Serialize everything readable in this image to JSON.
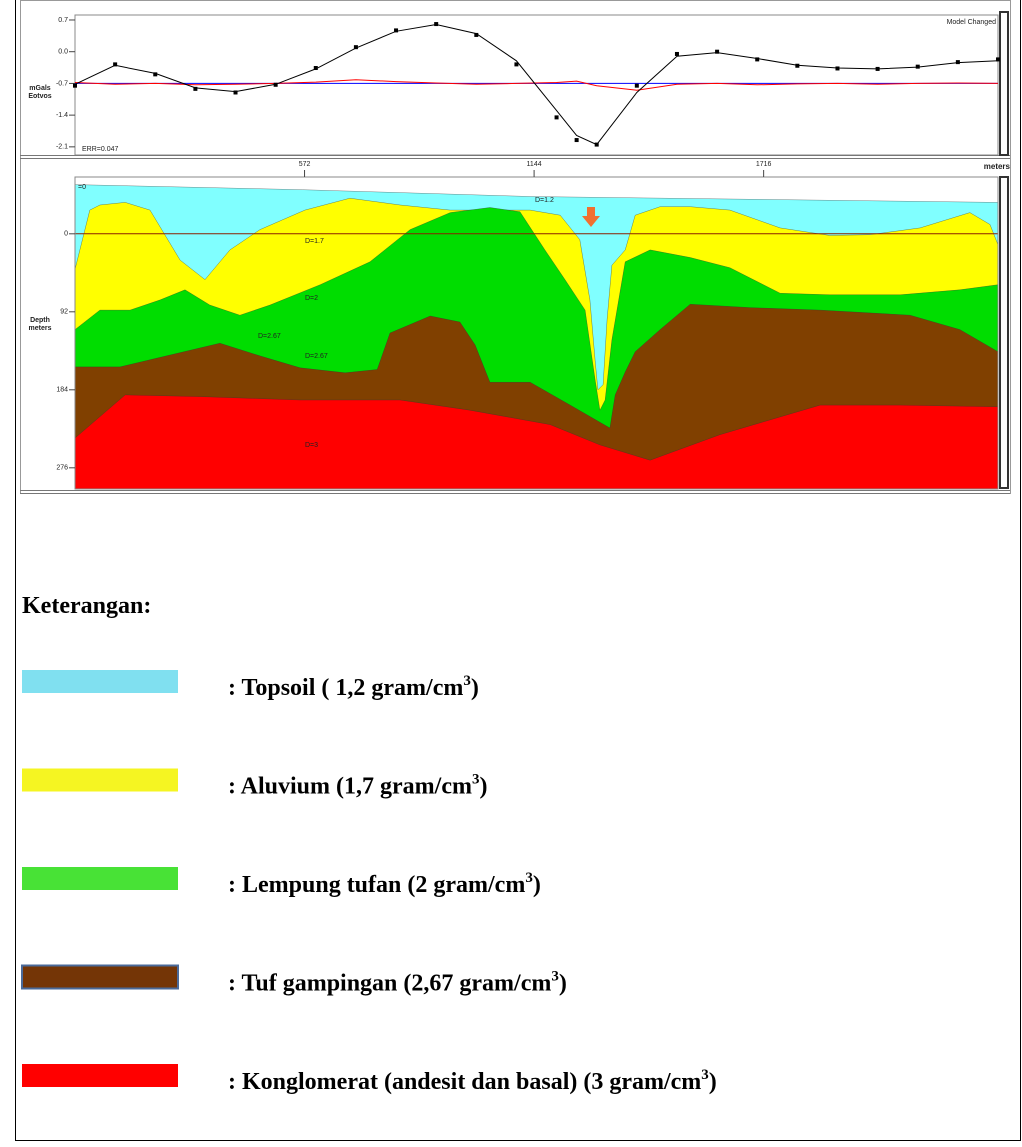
{
  "chart_data": [
    {
      "type": "line",
      "ylabel": [
        "mGals",
        "Eotvos"
      ],
      "annotations": [
        "ERR=0.047",
        "Model Changed"
      ],
      "x": [
        0,
        100,
        200,
        300,
        400,
        500,
        600,
        700,
        800,
        900,
        1000,
        1100,
        1200,
        1250,
        1300,
        1400,
        1500,
        1600,
        1700,
        1800,
        1900,
        2000,
        2100,
        2200,
        2300
      ],
      "series": [
        {
          "color": "#0000ff",
          "style": "line",
          "values": [
            -0.7,
            -0.7,
            -0.7,
            -0.7,
            -0.7,
            -0.7,
            -0.7,
            -0.7,
            -0.7,
            -0.7,
            -0.7,
            -0.7,
            -0.7,
            -0.7,
            -0.7,
            -0.7,
            -0.7,
            -0.7,
            -0.7,
            -0.7,
            -0.7,
            -0.7,
            -0.7,
            -0.7,
            -0.7
          ]
        },
        {
          "color": "#ff0000",
          "style": "line",
          "values": [
            -0.68,
            -0.72,
            -0.7,
            -0.73,
            -0.72,
            -0.7,
            -0.67,
            -0.62,
            -0.66,
            -0.69,
            -0.72,
            -0.7,
            -0.68,
            -0.65,
            -0.75,
            -0.85,
            -0.72,
            -0.7,
            -0.73,
            -0.71,
            -0.7,
            -0.72,
            -0.7,
            -0.69,
            -0.7
          ]
        },
        {
          "color": "#000000",
          "style": "line",
          "values": [
            -0.72,
            -0.3,
            -0.48,
            -0.8,
            -0.88,
            -0.72,
            -0.38,
            0.08,
            0.45,
            0.6,
            0.4,
            -0.2,
            -1.3,
            -1.85,
            -2.05,
            -0.9,
            -0.1,
            -0.02,
            -0.15,
            -0.3,
            -0.36,
            -0.38,
            -0.34,
            -0.24,
            -0.2
          ]
        },
        {
          "color": "#000000",
          "style": "markers",
          "values": [
            -0.75,
            -0.28,
            -0.5,
            -0.82,
            -0.9,
            -0.73,
            -0.36,
            0.1,
            0.47,
            0.61,
            0.37,
            -0.28,
            -1.45,
            -1.95,
            -2.05,
            -0.75,
            -0.05,
            0.0,
            -0.17,
            -0.31,
            -0.37,
            -0.38,
            -0.33,
            -0.23,
            -0.17
          ]
        }
      ],
      "xlim": [
        0,
        2300
      ],
      "ylim": [
        -2.28,
        0.81
      ],
      "yticks": [
        0.7,
        {
          "value": 0,
          "label": "0.0"
        },
        -0.7,
        -1.4,
        -2.1
      ]
    },
    {
      "type": "section",
      "xlabel": "meters",
      "ylabel": [
        "Depth",
        "meters"
      ],
      "annotations": [
        "=0",
        "D=1.2",
        "D=1.7",
        "D=2",
        "D=2.67",
        "D=2.67",
        "D=3"
      ],
      "xlim": [
        0,
        2300
      ],
      "xticks": [
        572,
        1144,
        1716
      ],
      "ylim": [
        -67,
        301
      ],
      "invert_y": true,
      "yticks": [
        0,
        92,
        184,
        276
      ],
      "zero_line": true,
      "layers": [
        {
          "color": "#80ffff",
          "x": [
            0,
            566,
            1134,
            2300
          ],
          "top": [
            -58,
            -52,
            -44,
            -37
          ]
        },
        {
          "color": "#ffff00",
          "x": [
            0,
            37,
            62,
            125,
            187,
            262,
            324,
            386,
            461,
            573,
            685,
            810,
            935,
            1059,
            1134,
            1209,
            1258,
            1283,
            1296,
            1303,
            1316,
            1326,
            1338,
            1371,
            1396,
            1458,
            1533,
            1632,
            1757,
            1881,
            1981,
            2106,
            2230,
            2280,
            2300
          ],
          "top": [
            42,
            -28,
            -34,
            -37,
            -28,
            31,
            54,
            19,
            -5,
            -28,
            -42,
            -34,
            -28,
            -28,
            -28,
            -22,
            7,
            78,
            149,
            184,
            178,
            101,
            37,
            19,
            -22,
            -32,
            -32,
            -28,
            -7,
            2,
            1,
            -7,
            -25,
            -11,
            13
          ]
        },
        {
          "color": "#00dd00",
          "x": [
            0,
            62,
            137,
            212,
            274,
            336,
            411,
            486,
            611,
            735,
            835,
            935,
            1034,
            1109,
            1171,
            1221,
            1271,
            1296,
            1308,
            1321,
            1338,
            1371,
            1433,
            1533,
            1632,
            1757,
            1881,
            2056,
            2205,
            2300
          ],
          "top": [
            113,
            90,
            90,
            78,
            66,
            84,
            96,
            84,
            60,
            33,
            -5,
            -25,
            -31,
            -26,
            19,
            54,
            90,
            172,
            208,
            196,
            125,
            33,
            19,
            28,
            40,
            70,
            72,
            72,
            66,
            60
          ]
        },
        {
          "color": "#804000",
          "x": [
            0,
            112,
            237,
            361,
            461,
            561,
            673,
            753,
            785,
            885,
            959,
            997,
            1034,
            1134,
            1234,
            1333,
            1346,
            1371,
            1396,
            1458,
            1533,
            1682,
            1857,
            2081,
            2205,
            2300
          ],
          "top": [
            157,
            157,
            143,
            129,
            144,
            158,
            164,
            160,
            117,
            97,
            104,
            131,
            175,
            175,
            202,
            229,
            190,
            163,
            139,
            113,
            83,
            87,
            90,
            96,
            113,
            139
          ]
        },
        {
          "color": "#ff0000",
          "x": [
            0,
            125,
            312,
            561,
            810,
            984,
            1184,
            1308,
            1433,
            1607,
            1857,
            2056,
            2300
          ],
          "top": [
            241,
            190,
            192,
            196,
            196,
            208,
            225,
            249,
            267,
            237,
            202,
            202,
            204
          ]
        }
      ]
    }
  ],
  "legend": {
    "title": "Keterangan:",
    "items": [
      {
        "color": "#80e0f0",
        "text": ": Topsoil ( 1,2 gram/cm",
        "sup": "3",
        "close": ")"
      },
      {
        "color": "#f5f522",
        "text": ": Aluvium (1,7 gram/cm",
        "sup": "3",
        "close": ")"
      },
      {
        "color": "#48e236",
        "text": ": Lempung tufan (2 gram/cm",
        "sup": "3",
        "close": ")"
      },
      {
        "color": "#743506",
        "border": "#4a6a9a",
        "text": ": Tuf gampingan (2,67 gram/cm",
        "sup": "3",
        "close": ")"
      },
      {
        "color": "#ff0000",
        "text": ": Konglomerat (andesit dan basal) (3 gram/cm",
        "sup": "3",
        "close": ")"
      }
    ]
  }
}
